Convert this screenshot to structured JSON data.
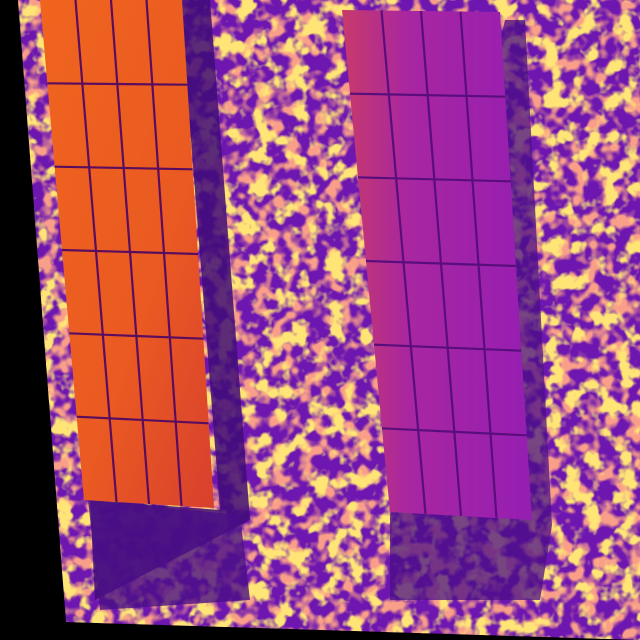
{
  "image": {
    "kind": "thermal-aerial-photo",
    "palette": [
      "#1a0010",
      "#3a0a6a",
      "#6a13a8",
      "#8a18b8",
      "#b01e90",
      "#e03a40",
      "#f06a18",
      "#ffb020",
      "#ffe060"
    ],
    "colors": {
      "background": "#000000",
      "ground_base": "#6e17b0",
      "hot_speckle": "#ffb020",
      "very_hot_speckle": "#ffe36a",
      "panel_warm": "#ee5a1c",
      "panel_cool": "#9a20b4",
      "panel_gridline": "#4a0c6e",
      "shadow": "#3a0a6a"
    },
    "panel_arrays": [
      {
        "name": "left-array",
        "columns": 4,
        "rows": 6,
        "thermal_state": "warm"
      },
      {
        "name": "right-array",
        "columns": 4,
        "rows": 6,
        "thermal_state": "cool"
      }
    ]
  }
}
